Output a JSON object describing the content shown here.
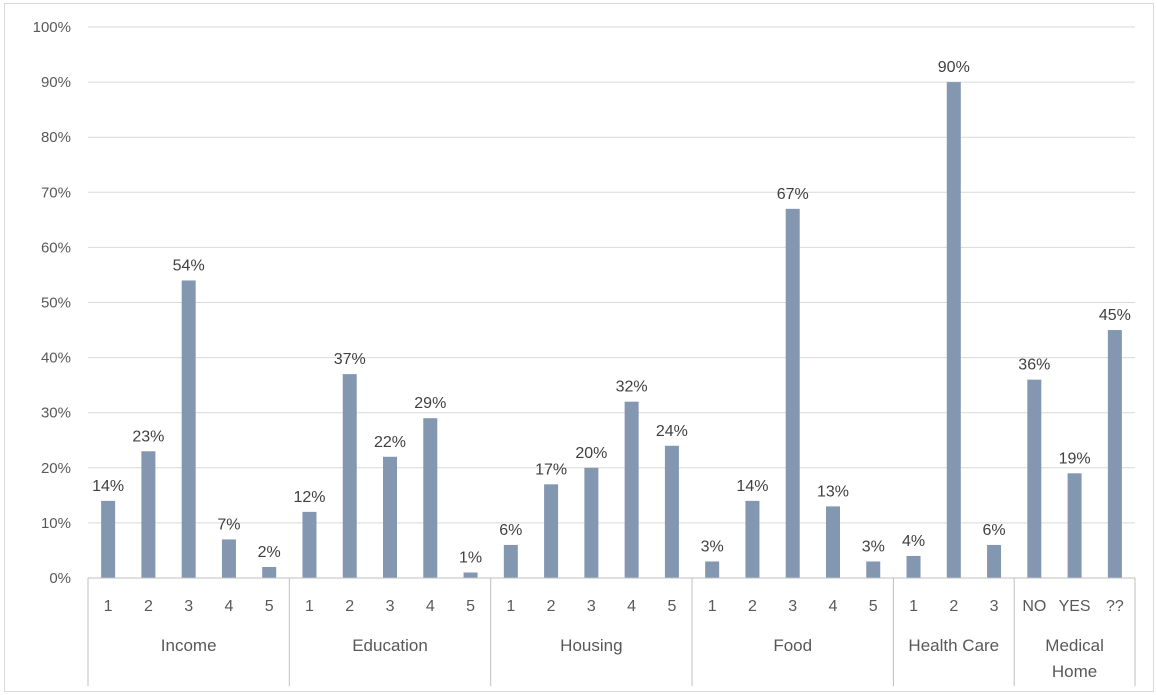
{
  "colors": {
    "bar": "#8497b0",
    "grid": "#d9d9d9",
    "axis": "#bfbfbf",
    "text": "#595959"
  },
  "chart_data": {
    "type": "bar",
    "title": "",
    "xlabel": "",
    "ylabel": "",
    "ylim": [
      0,
      100
    ],
    "y_ticks": [
      "0%",
      "10%",
      "20%",
      "30%",
      "40%",
      "50%",
      "60%",
      "70%",
      "80%",
      "90%",
      "100%"
    ],
    "grid": true,
    "legend": "none",
    "groups": [
      {
        "name": "Income",
        "categories": [
          "1",
          "2",
          "3",
          "4",
          "5"
        ],
        "values": [
          14,
          23,
          54,
          7,
          2
        ],
        "labels": [
          "14%",
          "23%",
          "54%",
          "7%",
          "2%"
        ]
      },
      {
        "name": "Education",
        "categories": [
          "1",
          "2",
          "3",
          "4",
          "5"
        ],
        "values": [
          12,
          37,
          22,
          29,
          1
        ],
        "labels": [
          "12%",
          "37%",
          "22%",
          "29%",
          "1%"
        ]
      },
      {
        "name": "Housing",
        "categories": [
          "1",
          "2",
          "3",
          "4",
          "5"
        ],
        "values": [
          6,
          17,
          20,
          32,
          24
        ],
        "labels": [
          "6%",
          "17%",
          "20%",
          "32%",
          "24%"
        ]
      },
      {
        "name": "Food",
        "categories": [
          "1",
          "2",
          "3",
          "4",
          "5"
        ],
        "values": [
          3,
          14,
          67,
          13,
          3
        ],
        "labels": [
          "3%",
          "14%",
          "67%",
          "13%",
          "3%"
        ]
      },
      {
        "name": "Health Care",
        "categories": [
          "1",
          "2",
          "3"
        ],
        "values": [
          4,
          90,
          6
        ],
        "labels": [
          "4%",
          "90%",
          "6%"
        ]
      },
      {
        "name": "Medical Home",
        "name_lines": [
          "Medical",
          "Home"
        ],
        "categories": [
          "NO",
          "YES",
          "??"
        ],
        "values": [
          36,
          19,
          45
        ],
        "labels": [
          "36%",
          "19%",
          "45%"
        ]
      }
    ]
  }
}
